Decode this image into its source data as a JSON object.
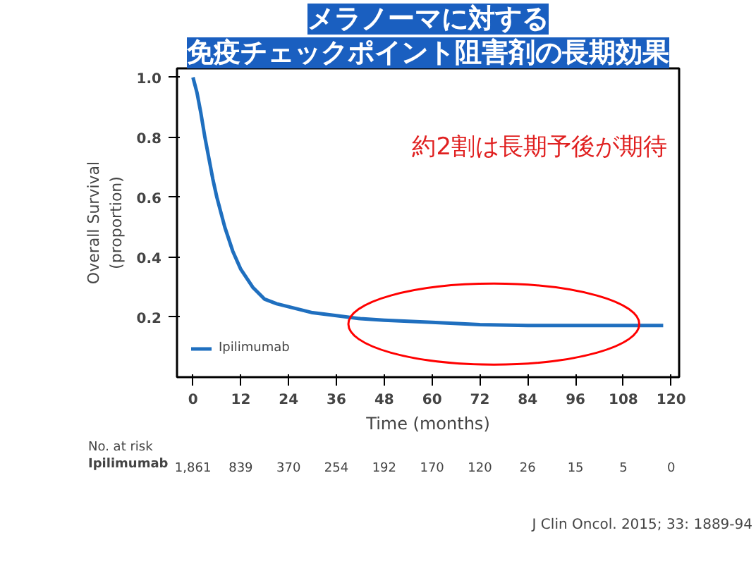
{
  "chart_data": {
    "type": "line",
    "title": "メラノーマに対する",
    "subtitle": "免疫チェックポイント阻害剤の長期効果",
    "xlabel": "Time (months)",
    "ylabel": "Overall Survival\n(proportion)",
    "x": [
      0,
      1,
      2,
      3,
      4,
      5,
      6,
      8,
      10,
      12,
      15,
      18,
      21,
      24,
      30,
      36,
      42,
      48,
      60,
      72,
      84,
      96,
      118
    ],
    "series": [
      {
        "name": "Ipilimumab",
        "color": "#1f6fbf",
        "values": [
          1.0,
          0.95,
          0.88,
          0.8,
          0.73,
          0.66,
          0.6,
          0.5,
          0.42,
          0.36,
          0.3,
          0.26,
          0.245,
          0.235,
          0.215,
          0.205,
          0.195,
          0.19,
          0.183,
          0.175,
          0.172,
          0.172,
          0.172
        ]
      }
    ],
    "xlim": [
      -4,
      122
    ],
    "ylim": [
      0,
      1.03
    ],
    "xticks": [
      0,
      12,
      24,
      36,
      48,
      60,
      72,
      84,
      96,
      108,
      120
    ],
    "yticks": [
      0.2,
      0.4,
      0.6,
      0.8,
      {
        "value": 1.0,
        "label": "1.0"
      }
    ],
    "annotations": [
      "約2割は長期予後が期待",
      "No. at risk",
      "Ipilimumab",
      "1,861 839 370 254 192 170 120 26 15 5 0",
      "J Clin Oncol. 2015; 33: 1889-94"
    ],
    "legend": "bottom left",
    "grid": false,
    "line_style": "solid",
    "marker": "none"
  }
}
